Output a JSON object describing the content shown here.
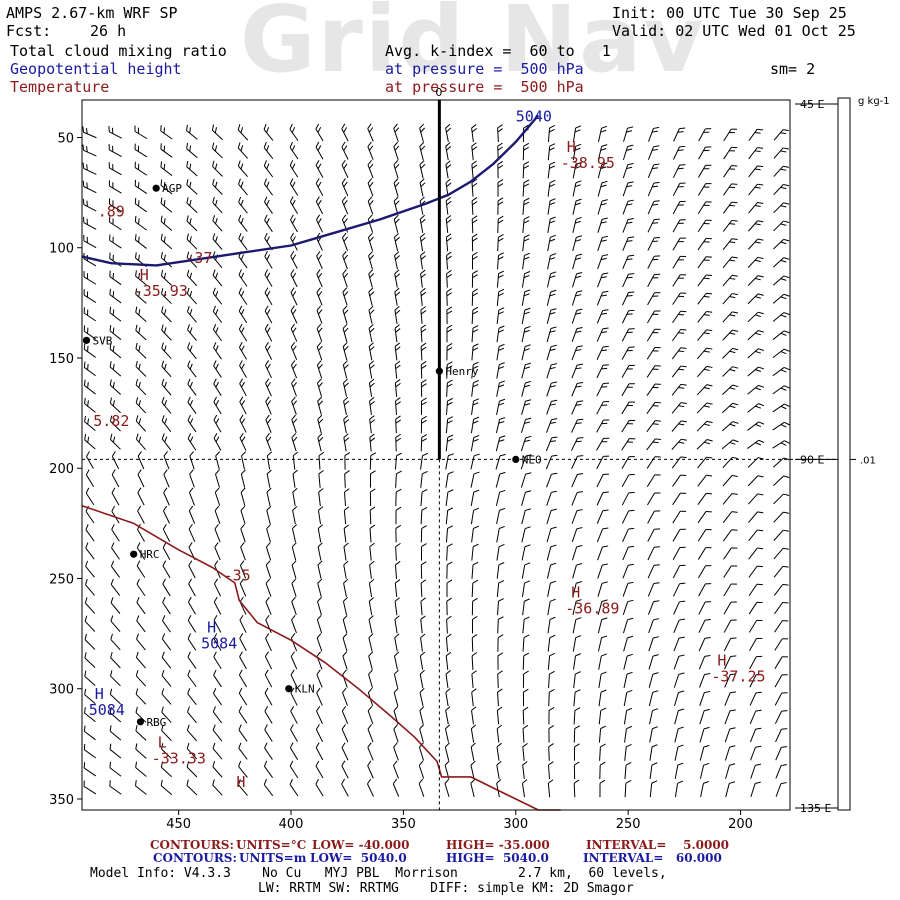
{
  "watermark": "Grid Nav",
  "header": {
    "model": "AMPS 2.67-km WRF SP",
    "fcst_label": "Fcst:",
    "fcst_value": "26 h",
    "init": "Init: 00 UTC Tue 30 Sep 25",
    "valid": "Valid: 02 UTC Wed 01 Oct 25",
    "field1": "Total cloud mixing ratio",
    "field2": "Geopotential height",
    "field3": "Temperature",
    "avg": "Avg. k-index =  60 to   1",
    "pressure1": "at pressure =  500 hPa",
    "pressure2": "at pressure =  500 hPa",
    "sm": "sm= 2"
  },
  "colors": {
    "height_contour": "#1a1a6e",
    "temp_contour": "#8b1a1a",
    "text_blue": "#1a1aa0",
    "text_red": "#8b1a1a"
  },
  "chart_data": {
    "type": "contour-map",
    "x_axis": {
      "ticks": [
        450,
        400,
        350,
        300,
        250,
        200
      ],
      "range": [
        493,
        178
      ],
      "reversed": true
    },
    "y_axis": {
      "ticks": [
        50,
        100,
        150,
        200,
        250,
        300,
        350
      ],
      "range": [
        33,
        355
      ],
      "reversed": true
    },
    "top_label": "0",
    "colorbar": {
      "unit": "g kg-1",
      "value_label": ".01",
      "lon_labels": [
        "45 E",
        "90 E",
        "135 E"
      ]
    },
    "stations": [
      {
        "name": "AGP",
        "x": 460,
        "y": 73
      },
      {
        "name": "SVB",
        "x": 491,
        "y": 142
      },
      {
        "name": "Henry",
        "x": 334,
        "y": 156
      },
      {
        "name": "NEO",
        "x": 300,
        "y": 196
      },
      {
        "name": "HRC",
        "x": 470,
        "y": 239
      },
      {
        "name": "KLN",
        "x": 401,
        "y": 300
      },
      {
        "name": "RBG",
        "x": 467,
        "y": 315
      }
    ],
    "height_contours": [
      {
        "label": "5040",
        "value": 5040,
        "x": [
          493,
          480,
          460,
          440,
          420,
          400,
          380,
          360,
          340,
          330,
          320,
          310,
          300,
          290
        ],
        "y": [
          104,
          107,
          108,
          105,
          102,
          99,
          93,
          87,
          80,
          76,
          70,
          62,
          52,
          40
        ]
      }
    ],
    "temperature_contours": [
      {
        "label": "-35",
        "value": -35,
        "x": [
          493,
          470,
          450,
          435,
          425,
          423,
          415,
          400,
          385,
          370,
          355,
          345,
          335,
          333,
          320,
          310,
          300,
          290,
          280
        ],
        "y": [
          217,
          225,
          237,
          245,
          252,
          260,
          270,
          278,
          288,
          300,
          313,
          322,
          333,
          340,
          340,
          345,
          350,
          355,
          355
        ]
      }
    ],
    "annotations": [
      {
        "marker": "H",
        "value": "-38.95",
        "x": 280,
        "y": 62,
        "color": "red"
      },
      {
        "marker": "",
        "value": "-37",
        "x": 447,
        "y": 105,
        "color": "red"
      },
      {
        "marker": "H",
        "value": "-35.93",
        "x": 470,
        "y": 120,
        "color": "red"
      },
      {
        "marker": "",
        "value": "-35",
        "x": 430,
        "y": 249,
        "color": "red"
      },
      {
        "marker": "H",
        "value": "-36.89",
        "x": 278,
        "y": 264,
        "color": "red"
      },
      {
        "marker": "H",
        "value": "-37.25",
        "x": 213,
        "y": 295,
        "color": "red"
      },
      {
        "marker": "L",
        "value": "-33.33",
        "x": 462,
        "y": 332,
        "color": "red"
      },
      {
        "marker": "H",
        "value": "5084",
        "x": 440,
        "y": 280,
        "color": "blue"
      },
      {
        "marker": "H",
        "value": "5084",
        "x": 490,
        "y": 310,
        "color": "blue"
      },
      {
        "marker": "",
        "value": "5040",
        "x": 300,
        "y": 41,
        "color": "blue"
      },
      {
        "marker": "",
        "value": ".89",
        "x": 486,
        "y": 84,
        "color": "red"
      },
      {
        "marker": "",
        "value": "5.82",
        "x": 488,
        "y": 179,
        "color": "red"
      },
      {
        "marker": "H",
        "value": "",
        "x": 427,
        "y": 350,
        "color": "red"
      }
    ]
  },
  "footer": {
    "contours1_label": "CONTOURS:",
    "contours1_units": "UNITS=°C",
    "contours1_low": "LOW= -40.000",
    "contours1_high": "HIGH= -35.000",
    "contours1_interval": "INTERVAL=    5.0000",
    "contours2_label": "CONTOURS:",
    "contours2_units": "UNITS=m",
    "contours2_low": "LOW=  5040.0",
    "contours2_high": "HIGH=  5040.0",
    "contours2_interval": "INTERVAL=   60.000",
    "model_info": "Model Info: V4.3.3    No Cu   MYJ PBL  Morrison",
    "grid_info": "2.7 km,  60 levels,",
    "physics": "LW: RRTM SW: RRTMG    DIFF: simple KM: 2D Smagor"
  }
}
